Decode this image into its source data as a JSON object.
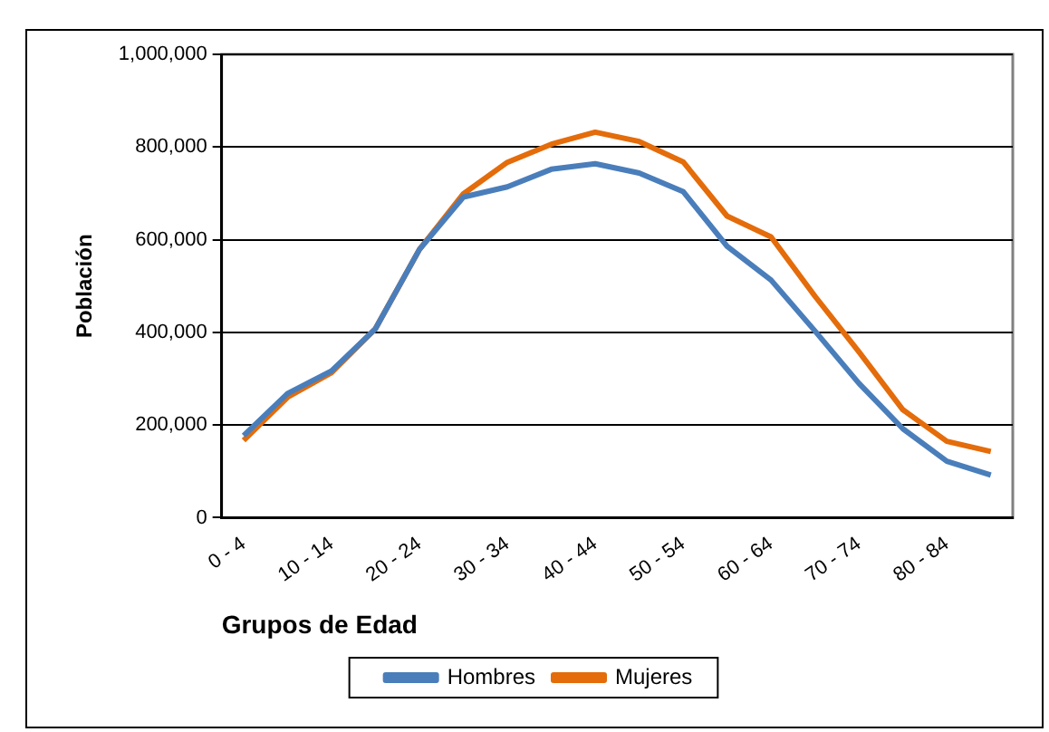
{
  "chart_data": {
    "type": "line",
    "xlabel": "Grupos de Edad",
    "ylabel": "Población",
    "categories": [
      "0 - 4",
      null,
      "10 - 14",
      null,
      "20 - 24",
      null,
      "30 - 34",
      null,
      "40 - 44",
      null,
      "50 - 54",
      null,
      "60 - 64",
      null,
      "70 - 74",
      null,
      "80 - 84",
      null
    ],
    "series": [
      {
        "name": "Hombres",
        "color": "#4a7ebb",
        "values": [
          177000,
          268000,
          317000,
          408000,
          579000,
          692000,
          714000,
          752000,
          764000,
          744000,
          704000,
          586000,
          513000,
          403000,
          290000,
          192000,
          122000,
          92000
        ]
      },
      {
        "name": "Mujeres",
        "color": "#e46c0a",
        "values": [
          167000,
          260000,
          313000,
          408000,
          579000,
          699000,
          767000,
          806000,
          832000,
          812000,
          768000,
          651000,
          606000,
          478000,
          358000,
          233000,
          165000,
          143000
        ]
      }
    ],
    "ylim": [
      0,
      1000000
    ],
    "yticks": [
      0,
      {
        "value": 200000,
        "label": "200,000"
      },
      {
        "value": 400000,
        "label": "400,000"
      },
      {
        "value": 600000,
        "label": "600,000"
      },
      {
        "value": 800000,
        "label": "800,000"
      },
      {
        "value": 1000000,
        "label": "1,000,000"
      }
    ],
    "grid": "y",
    "legend": "bottom",
    "marker": "none",
    "line_style": "solid"
  }
}
